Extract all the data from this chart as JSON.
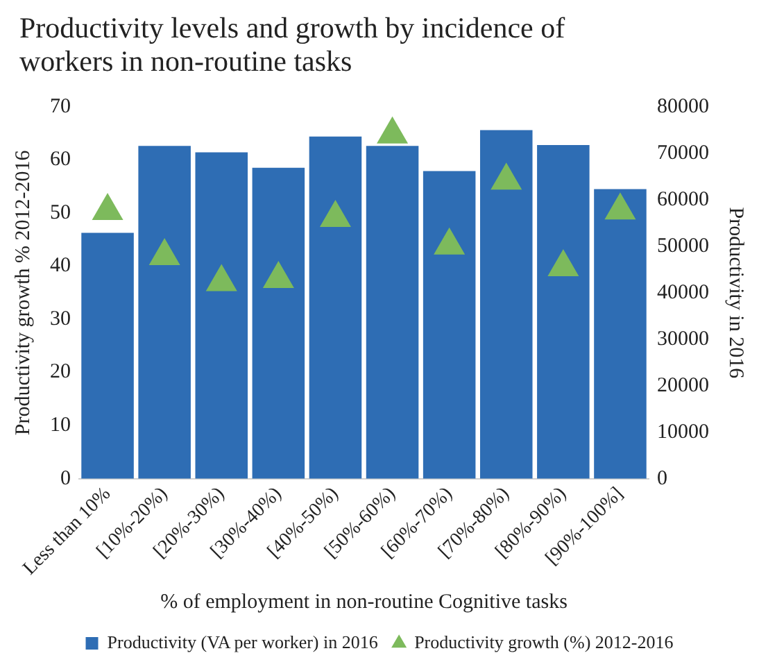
{
  "chart_data": {
    "type": "bar",
    "title": "Productivity levels and growth by incidence of workers in non-routine tasks",
    "xlabel": "% of employment in non-routine Cognitive tasks",
    "ylabel": "Productivity growth % 2012-2016",
    "y2label": "Productivity in 2016",
    "categories": [
      "Less than 10%",
      "[10%-20%)",
      "[20%-30%)",
      "[30%-40%)",
      "[40%-50%)",
      "[50%-60%)",
      "[60%-70%)",
      "[70%-80%)",
      "[80%-90%)",
      "[90%-100%]"
    ],
    "series": [
      {
        "name": "Productivity (VA per worker) in 2016",
        "axis": "y2",
        "color": "#2e6db4",
        "values": [
          52900,
          71600,
          70200,
          66900,
          73600,
          71600,
          66200,
          75000,
          71800,
          62300
        ]
      },
      {
        "name": "Productivity growth (%) 2012-2016",
        "type": "scatter",
        "axis": "y",
        "color": "#7dba5c",
        "marker": "triangle",
        "x": [
          "Less than 10%",
          "[10%-20%)",
          "[20%-30%)",
          "[30%-40%)",
          "[40%-50%)",
          "[50%-60%)",
          "[60%-70%)",
          "[70%-80%)",
          "[80%-90%)",
          "[90%-100%]"
        ],
        "values": [
          50.4,
          41.9,
          37.0,
          37.6,
          49.1,
          64.8,
          43.9,
          56.1,
          39.8,
          50.5
        ]
      }
    ],
    "ylim": [
      0,
      70
    ],
    "yticks": [
      0,
      10,
      20,
      30,
      40,
      50,
      60,
      70
    ],
    "y2lim": [
      0,
      80000
    ],
    "y2ticks": [
      0,
      10000,
      20000,
      30000,
      40000,
      50000,
      60000,
      70000,
      80000
    ],
    "grid": false,
    "legend": "bottom"
  }
}
